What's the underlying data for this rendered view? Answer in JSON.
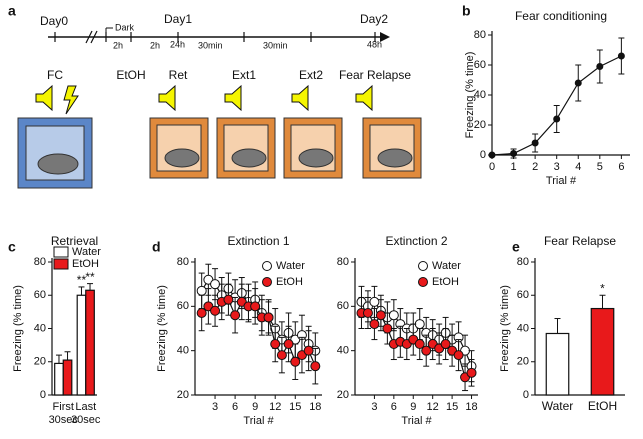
{
  "diagram": {
    "panel": "a",
    "day0": "Day0",
    "dark": "Dark",
    "day1": "Day1",
    "h24": "24h",
    "h2a": "2h",
    "h2b": "2h",
    "min30a": "30min",
    "min30b": "30min",
    "day2": "Day2",
    "h48": "48h",
    "stages": [
      "FC",
      "EtOH",
      "Ret",
      "Ext1",
      "Ext2",
      "Fear Relapse"
    ]
  },
  "chart_data": [
    {
      "type": "line",
      "panel": "b",
      "title": "Fear conditioning",
      "xlabel": "Trial #",
      "ylabel": "Freezing (% time)",
      "x": [
        0,
        1,
        2,
        3,
        4,
        5,
        6
      ],
      "xlim": [
        0,
        6.4
      ],
      "xticks": [
        0,
        1,
        2,
        3,
        4,
        5,
        6
      ],
      "ylim": [
        0,
        80
      ],
      "yticks": [
        0,
        20,
        40,
        60,
        80
      ],
      "series": [
        {
          "color": "#111111",
          "values": [
            0,
            1,
            8,
            24,
            48,
            59,
            66
          ],
          "errors": [
            0,
            3,
            6,
            9,
            12,
            11,
            12
          ]
        }
      ]
    },
    {
      "type": "bar",
      "panel": "c",
      "title": "Retrieval",
      "ylabel": "Freezing (% time)",
      "legend": "upper left",
      "categories": [
        [
          "First",
          "30sec"
        ],
        [
          "Last",
          "30sec"
        ]
      ],
      "ylim": [
        0,
        80
      ],
      "yticks": [
        0,
        20,
        40,
        60,
        80
      ],
      "series": [
        {
          "name": "Water",
          "color": "#ffffff",
          "values": [
            19,
            60
          ],
          "errors": [
            5,
            5
          ]
        },
        {
          "name": "EtOH",
          "color": "#e8191b",
          "values": [
            21,
            63
          ],
          "errors": [
            5,
            4
          ]
        }
      ],
      "annotations": [
        {
          "text": "**",
          "category": 1,
          "series": 0
        },
        {
          "text": "**",
          "category": 1,
          "series": 1
        }
      ]
    },
    {
      "type": "line",
      "panel": "d",
      "title": "Extinction 1",
      "xlabel": "Trial #",
      "ylabel": "Freezing (% time)",
      "legend": "upper right",
      "x": [
        1,
        2,
        3,
        4,
        5,
        6,
        7,
        8,
        9,
        10,
        11,
        12,
        13,
        14,
        15,
        16,
        17,
        18
      ],
      "xlim": [
        0,
        19
      ],
      "xticks": [
        3,
        6,
        9,
        12,
        15,
        18
      ],
      "ylim": [
        20,
        80
      ],
      "yticks": [
        20,
        40,
        60,
        80
      ],
      "series": [
        {
          "name": "Water",
          "color": "#ffffff",
          "values": [
            67,
            72,
            70,
            65,
            68,
            64,
            66,
            62,
            63,
            57,
            55,
            50,
            45,
            48,
            45,
            47,
            43,
            40
          ],
          "errors": [
            8,
            7,
            7,
            8,
            7,
            8,
            7,
            8,
            8,
            8,
            8,
            9,
            8,
            9,
            8,
            9,
            8,
            8
          ]
        },
        {
          "name": "EtOH",
          "color": "#e8191b",
          "values": [
            57,
            60,
            58,
            62,
            63,
            56,
            62,
            60,
            60,
            55,
            55,
            43,
            38,
            43,
            35,
            38,
            40,
            33
          ],
          "errors": [
            8,
            8,
            7,
            8,
            7,
            8,
            8,
            7,
            8,
            8,
            7,
            8,
            8,
            8,
            8,
            8,
            9,
            8
          ]
        }
      ]
    },
    {
      "type": "line",
      "panel": null,
      "title": "Extinction 2",
      "xlabel": "Trial #",
      "ylabel": null,
      "legend": "upper right",
      "x": [
        1,
        2,
        3,
        4,
        5,
        6,
        7,
        8,
        9,
        10,
        11,
        12,
        13,
        14,
        15,
        16,
        17,
        18
      ],
      "xlim": [
        0,
        19
      ],
      "xticks": [
        3,
        6,
        9,
        12,
        15,
        18
      ],
      "ylim": [
        20,
        80
      ],
      "yticks": [
        20,
        40,
        60,
        80
      ],
      "series": [
        {
          "name": "Water",
          "color": "#ffffff",
          "values": [
            62,
            60,
            62,
            58,
            55,
            56,
            52,
            50,
            50,
            52,
            48,
            47,
            45,
            48,
            45,
            46,
            40,
            33
          ],
          "errors": [
            7,
            7,
            7,
            7,
            7,
            7,
            7,
            7,
            7,
            7,
            7,
            7,
            7,
            7,
            7,
            7,
            7,
            7
          ]
        },
        {
          "name": "EtOH",
          "color": "#e8191b",
          "values": [
            57,
            57,
            52,
            56,
            50,
            43,
            44,
            43,
            45,
            43,
            40,
            43,
            41,
            43,
            40,
            38,
            28,
            30
          ],
          "errors": [
            7,
            7,
            7,
            7,
            7,
            7,
            7,
            7,
            7,
            7,
            7,
            7,
            7,
            7,
            7,
            7,
            6,
            6
          ]
        }
      ]
    },
    {
      "type": "bar",
      "panel": "e",
      "title": "Fear Relapse",
      "ylabel": "Freezing (% time)",
      "categories": [
        "Water",
        "EtOH"
      ],
      "ylim": [
        0,
        80
      ],
      "yticks": [
        0,
        20,
        40,
        60,
        80
      ],
      "values": [
        37,
        52
      ],
      "errors": [
        9,
        8
      ],
      "colors": [
        "#ffffff",
        "#e8191b"
      ],
      "annotations": [
        {
          "text": "*",
          "category": 1
        }
      ]
    }
  ]
}
